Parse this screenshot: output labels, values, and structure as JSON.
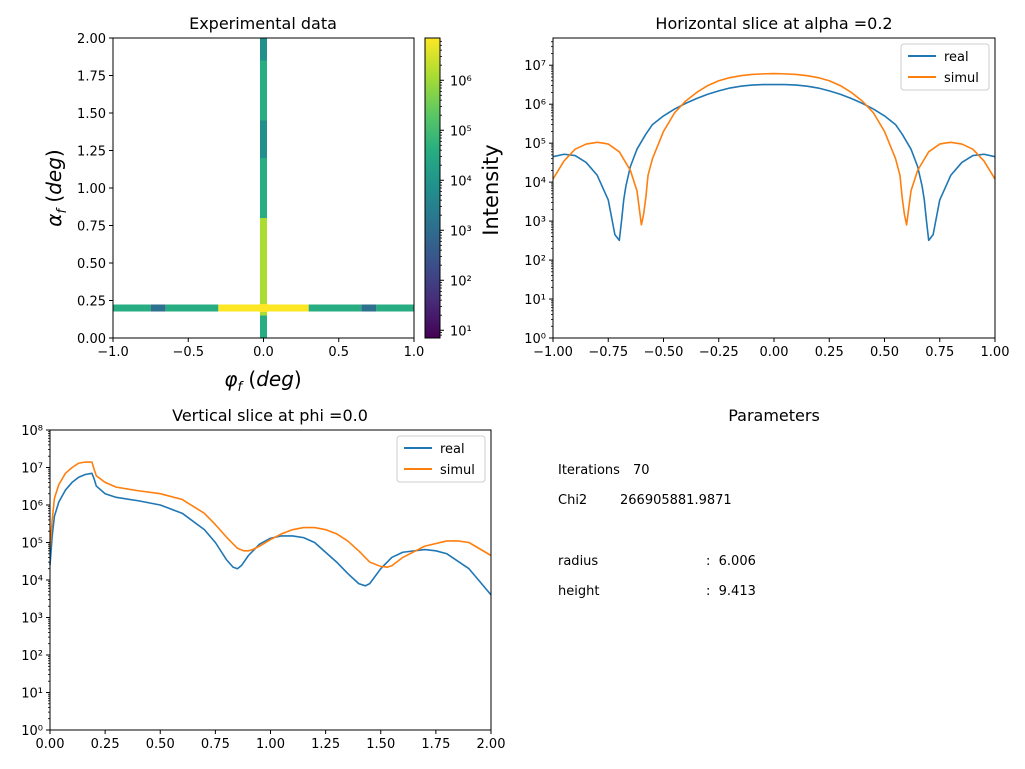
{
  "chart_data": [
    {
      "type": "heatmap",
      "title": "Experimental data",
      "xlabel": "φ_f (deg)",
      "ylabel": "α_f (deg)",
      "xlim": [
        -1.0,
        1.0
      ],
      "ylim": [
        0.0,
        2.0
      ],
      "x_ticks": [
        "−1.0",
        "−0.5",
        "0.0",
        "0.5",
        "1.0"
      ],
      "y_ticks": [
        "0.00",
        "0.25",
        "0.50",
        "0.75",
        "1.00",
        "1.25",
        "1.50",
        "1.75",
        "2.00"
      ],
      "colorbar": {
        "label": "Intensity",
        "scale": "log",
        "range": [
          7,
          7000000
        ],
        "ticks": [
          "10¹",
          "10²",
          "10³",
          "10⁴",
          "10⁵",
          "10⁶"
        ],
        "colormap": [
          "#440154",
          "#472c7a",
          "#3b518b",
          "#2c718e",
          "#21908d",
          "#27ad81",
          "#5cc863",
          "#aadc32",
          "#fde725"
        ]
      },
      "features": [
        {
          "kind": "horizontal band",
          "alpha_f": 0.2,
          "phi_range": [
            -1.0,
            1.0
          ]
        },
        {
          "kind": "vertical band",
          "phi_f": 0.0,
          "alpha_range": [
            0.0,
            2.0
          ]
        }
      ]
    },
    {
      "type": "line",
      "title": "Horizontal slice at alpha =0.2",
      "xlim": [
        -1.0,
        1.0
      ],
      "ylim": [
        1,
        50000000
      ],
      "yscale": "log",
      "x_ticks": [
        "−1.00",
        "−0.75",
        "−0.50",
        "−0.25",
        "0.00",
        "0.25",
        "0.50",
        "0.75",
        "1.00"
      ],
      "y_ticks": [
        "10⁰",
        "10¹",
        "10²",
        "10³",
        "10⁴",
        "10⁵",
        "10⁶",
        "10⁷"
      ],
      "legend": "top-right",
      "series": [
        {
          "name": "real",
          "color": "#1f77b4",
          "x": [
            -1.0,
            -0.95,
            -0.9,
            -0.85,
            -0.8,
            -0.75,
            -0.72,
            -0.7,
            -0.69,
            -0.68,
            -0.67,
            -0.65,
            -0.62,
            -0.58,
            -0.55,
            -0.5,
            -0.45,
            -0.4,
            -0.35,
            -0.3,
            -0.25,
            -0.2,
            -0.15,
            -0.1,
            -0.05,
            0.0,
            0.05,
            0.1,
            0.15,
            0.2,
            0.25,
            0.3,
            0.35,
            0.4,
            0.45,
            0.5,
            0.55,
            0.58,
            0.62,
            0.65,
            0.67,
            0.68,
            0.69,
            0.7,
            0.72,
            0.75,
            0.8,
            0.85,
            0.9,
            0.95,
            1.0
          ],
          "y": [
            45000,
            52000,
            48000,
            32000,
            15000,
            3500,
            450,
            320,
            1000,
            3500,
            8000,
            25000,
            70000,
            170000,
            300000,
            500000,
            750000,
            1050000,
            1400000,
            1800000,
            2200000,
            2600000,
            2900000,
            3100000,
            3200000,
            3200000,
            3200000,
            3100000,
            2900000,
            2600000,
            2200000,
            1800000,
            1400000,
            1050000,
            750000,
            500000,
            300000,
            170000,
            70000,
            25000,
            8000,
            3500,
            1000,
            320,
            450,
            3500,
            15000,
            32000,
            48000,
            52000,
            45000
          ]
        },
        {
          "name": "simul",
          "color": "#ff7f0e",
          "x": [
            -1.0,
            -0.95,
            -0.9,
            -0.85,
            -0.8,
            -0.77,
            -0.75,
            -0.7,
            -0.65,
            -0.62,
            -0.6,
            -0.59,
            -0.58,
            -0.57,
            -0.55,
            -0.5,
            -0.45,
            -0.4,
            -0.35,
            -0.3,
            -0.25,
            -0.2,
            -0.15,
            -0.1,
            -0.05,
            0.0,
            0.05,
            0.1,
            0.15,
            0.2,
            0.25,
            0.3,
            0.35,
            0.4,
            0.45,
            0.5,
            0.55,
            0.57,
            0.58,
            0.59,
            0.6,
            0.62,
            0.65,
            0.7,
            0.75,
            0.77,
            0.8,
            0.85,
            0.9,
            0.95,
            1.0
          ],
          "y": [
            12000,
            35000,
            70000,
            95000,
            105000,
            100000,
            95000,
            60000,
            20000,
            6000,
            800,
            1500,
            4000,
            15000,
            40000,
            200000,
            600000,
            1200000,
            2000000,
            3000000,
            4000000,
            4800000,
            5400000,
            5800000,
            6000000,
            6100000,
            6000000,
            5800000,
            5400000,
            4800000,
            4000000,
            3000000,
            2000000,
            1200000,
            600000,
            200000,
            40000,
            15000,
            4000,
            1500,
            800,
            6000,
            20000,
            60000,
            95000,
            100000,
            105000,
            95000,
            70000,
            35000,
            12000
          ]
        }
      ]
    },
    {
      "type": "line",
      "title": "Vertical slice at phi =0.0",
      "xlim": [
        0.0,
        2.0
      ],
      "ylim": [
        1,
        100000000
      ],
      "yscale": "log",
      "x_ticks": [
        "0.00",
        "0.25",
        "0.50",
        "0.75",
        "1.00",
        "1.25",
        "1.50",
        "1.75",
        "2.00"
      ],
      "y_ticks": [
        "10⁰",
        "10¹",
        "10²",
        "10³",
        "10⁴",
        "10⁵",
        "10⁶",
        "10⁷",
        "10⁸"
      ],
      "legend": "top-right",
      "series": [
        {
          "name": "real",
          "color": "#1f77b4",
          "x": [
            0.0,
            0.01,
            0.02,
            0.04,
            0.07,
            0.1,
            0.13,
            0.16,
            0.19,
            0.2,
            0.21,
            0.25,
            0.3,
            0.4,
            0.5,
            0.6,
            0.7,
            0.75,
            0.8,
            0.83,
            0.85,
            0.87,
            0.9,
            0.95,
            1.0,
            1.05,
            1.1,
            1.15,
            1.2,
            1.3,
            1.35,
            1.4,
            1.43,
            1.45,
            1.5,
            1.55,
            1.6,
            1.7,
            1.75,
            1.8,
            1.9,
            1.95,
            2.0
          ],
          "y": [
            25000,
            150000,
            500000,
            1200000,
            2500000,
            4000000,
            5500000,
            6500000,
            7000000,
            5000000,
            3200000,
            2000000,
            1600000,
            1300000,
            1000000,
            600000,
            220000,
            100000,
            35000,
            22000,
            20000,
            25000,
            45000,
            90000,
            130000,
            150000,
            150000,
            135000,
            100000,
            30000,
            15000,
            8000,
            7000,
            8000,
            20000,
            40000,
            55000,
            65000,
            60000,
            50000,
            20000,
            9000,
            4000
          ]
        },
        {
          "name": "simul",
          "color": "#ff7f0e",
          "x": [
            0.0,
            0.01,
            0.02,
            0.04,
            0.07,
            0.1,
            0.13,
            0.16,
            0.19,
            0.2,
            0.21,
            0.25,
            0.3,
            0.4,
            0.5,
            0.6,
            0.7,
            0.75,
            0.8,
            0.85,
            0.88,
            0.9,
            0.92,
            0.95,
            1.0,
            1.05,
            1.1,
            1.15,
            1.2,
            1.25,
            1.3,
            1.35,
            1.4,
            1.45,
            1.5,
            1.53,
            1.55,
            1.6,
            1.7,
            1.8,
            1.85,
            1.9,
            2.0
          ],
          "y": [
            70000,
            400000,
            1500000,
            3500000,
            7000000,
            10000000,
            13000000,
            14000000,
            14000000,
            9000000,
            6000000,
            4000000,
            3000000,
            2400000,
            2000000,
            1400000,
            600000,
            300000,
            140000,
            70000,
            60000,
            60000,
            65000,
            80000,
            120000,
            170000,
            220000,
            250000,
            250000,
            220000,
            170000,
            110000,
            60000,
            30000,
            23000,
            22000,
            24000,
            40000,
            80000,
            110000,
            110000,
            100000,
            45000
          ]
        }
      ]
    }
  ],
  "parameters": {
    "title": "Parameters",
    "iterations_label": "Iterations",
    "iterations_value": "70",
    "chi2_label": "Chi2",
    "chi2_value": "266905881.9871",
    "params": [
      {
        "name": "radius",
        "value": ":  6.006"
      },
      {
        "name": "height",
        "value": ":  9.413"
      }
    ]
  },
  "legend_labels": [
    "real",
    "simul"
  ]
}
